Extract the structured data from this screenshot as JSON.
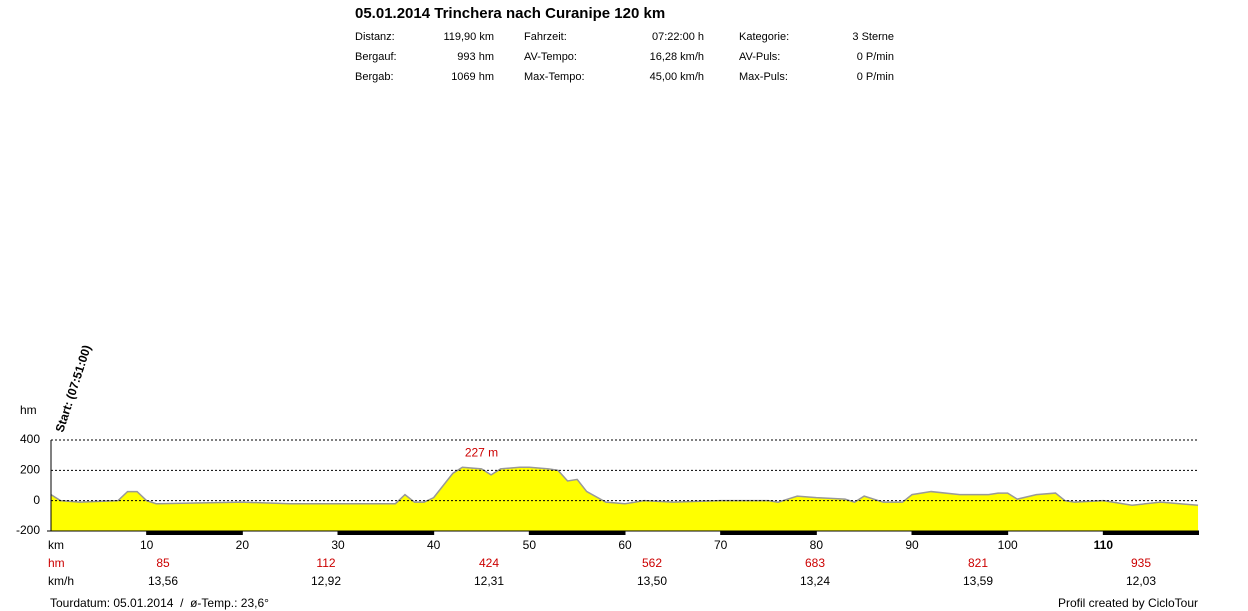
{
  "header": {
    "title": "05.01.2014 Trinchera nach Curanipe 120 km",
    "stats": [
      [
        "Distanz:",
        "119,90 km",
        "Fahrzeit:",
        "07:22:00 h",
        "Kategorie:",
        "3 Sterne"
      ],
      [
        "Bergauf:",
        "993 hm",
        "AV-Tempo:",
        "16,28 km/h",
        "AV-Puls:",
        "0 P/min"
      ],
      [
        "Bergab:",
        "1069 hm",
        "Max-Tempo:",
        "45,00 km/h",
        "Max-Puls:",
        "0 P/min"
      ]
    ]
  },
  "chart_data": {
    "type": "area",
    "ylabel": "hm",
    "xlabel": "km",
    "start_label": "Start: (07:51:00)",
    "x": [
      0,
      1,
      3,
      7,
      8,
      9,
      10,
      11,
      20,
      25,
      30,
      36,
      37,
      38,
      39,
      40,
      41,
      42,
      43,
      45,
      46,
      47,
      49,
      50,
      52,
      53,
      54,
      55,
      56,
      58,
      60,
      62,
      65,
      70,
      75,
      76,
      78,
      80,
      83,
      84,
      85,
      87,
      89,
      90,
      92,
      95,
      98,
      99,
      100,
      101,
      103,
      105,
      106,
      107,
      110,
      113,
      116,
      118,
      119.9
    ],
    "series": [
      {
        "name": "hm",
        "color": "#ffff00",
        "values": [
          40,
          0,
          -10,
          0,
          60,
          60,
          0,
          -20,
          -10,
          -20,
          -20,
          -20,
          40,
          -10,
          -10,
          20,
          100,
          180,
          220,
          210,
          170,
          210,
          220,
          220,
          210,
          200,
          130,
          140,
          60,
          -10,
          -20,
          0,
          -10,
          0,
          0,
          -10,
          30,
          20,
          10,
          -10,
          30,
          -10,
          -10,
          40,
          60,
          40,
          40,
          50,
          50,
          10,
          40,
          50,
          0,
          -10,
          0,
          -30,
          -10,
          -20,
          -30
        ]
      }
    ],
    "xlim": [
      0,
      120
    ],
    "ylim": [
      -200,
      400
    ],
    "yticks": [
      400,
      200,
      0,
      -200
    ],
    "xticks": [
      10,
      20,
      30,
      40,
      50,
      60,
      70,
      80,
      90,
      100,
      110
    ],
    "grid": true,
    "annotations": [
      {
        "text": "227 m",
        "x": 45,
        "y": 227
      }
    ],
    "rows": {
      "hm_label": "hm",
      "hm": [
        85,
        112,
        424,
        562,
        683,
        821,
        935
      ],
      "kmh_label": "km/h",
      "kmh": [
        "13,56",
        "12,92",
        "12,31",
        "13,50",
        "13,24",
        "13,59",
        "12,03"
      ]
    }
  },
  "footer": {
    "left": "Tourdatum: 05.01.2014  /  ø-Temp.: 23,6°",
    "right": "Profil created by CicloTour"
  }
}
